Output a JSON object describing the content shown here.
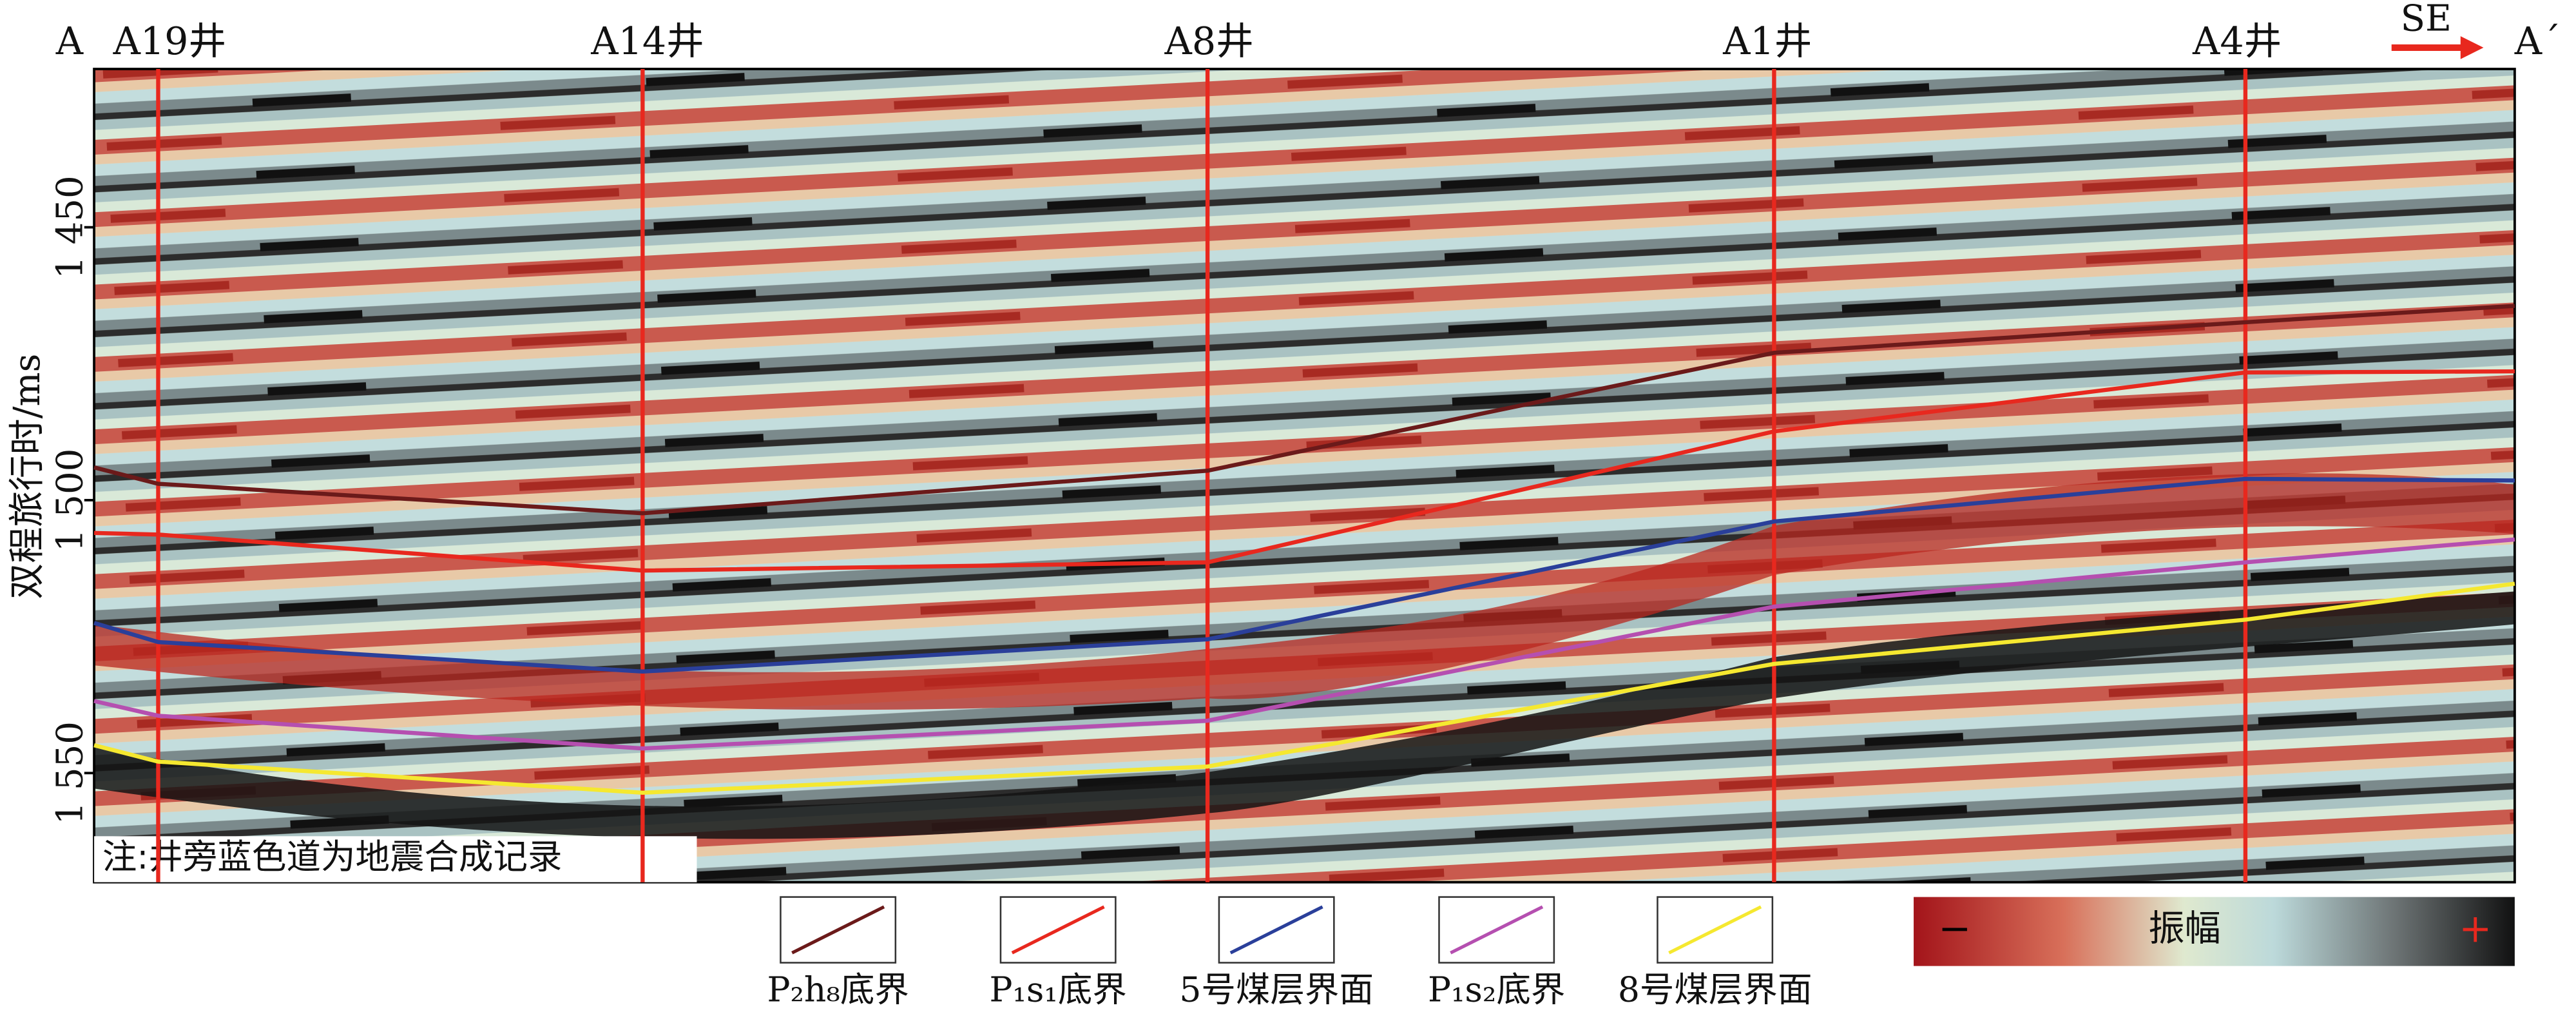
{
  "chart_data": {
    "type": "line",
    "y_label": "双程旅行时/ms",
    "categories": [
      "A",
      "A19井",
      "A14井",
      "A8井",
      "A1井",
      "A4井",
      "A´"
    ],
    "ylim": [
      1570,
      1421
    ],
    "yticks": [
      {
        "value": 1450,
        "label": "1 450"
      },
      {
        "value": 1500,
        "label": "1 500"
      },
      {
        "value": 1550,
        "label": "1 550"
      }
    ],
    "direction": "SE",
    "note": "注:井旁蓝色道为地震合成记录",
    "colorbar": {
      "title": "振幅",
      "min_label": "−",
      "max_label": "+"
    },
    "series": [
      {
        "name": "P₂h₈底界",
        "color": "#6b1a1a",
        "values": [
          1494,
          1497,
          1502.4,
          1494.6,
          1473,
          1467.4,
          1464.4
        ]
      },
      {
        "name": "P₁s₁底界",
        "color": "#e8281e",
        "values": [
          1506,
          1506.3,
          1512.9,
          1511.4,
          1487.4,
          1476.6,
          1476.4
        ]
      },
      {
        "name": "5号煤层界面",
        "color": "#2a3f9a",
        "values": [
          1522.5,
          1526,
          1531.4,
          1525.5,
          1503.9,
          1496.1,
          1496.4
        ]
      },
      {
        "name": "P₁s₂底界",
        "color": "#b54fb0",
        "values": [
          1536.8,
          1539.5,
          1545.5,
          1540.4,
          1519.5,
          1511.4,
          1507.2
        ]
      },
      {
        "name": "8号煤层界面",
        "color": "#f5e830",
        "values": [
          1544.9,
          1547.9,
          1553.6,
          1548.8,
          1530,
          1521.9,
          1515.3
        ]
      }
    ]
  }
}
